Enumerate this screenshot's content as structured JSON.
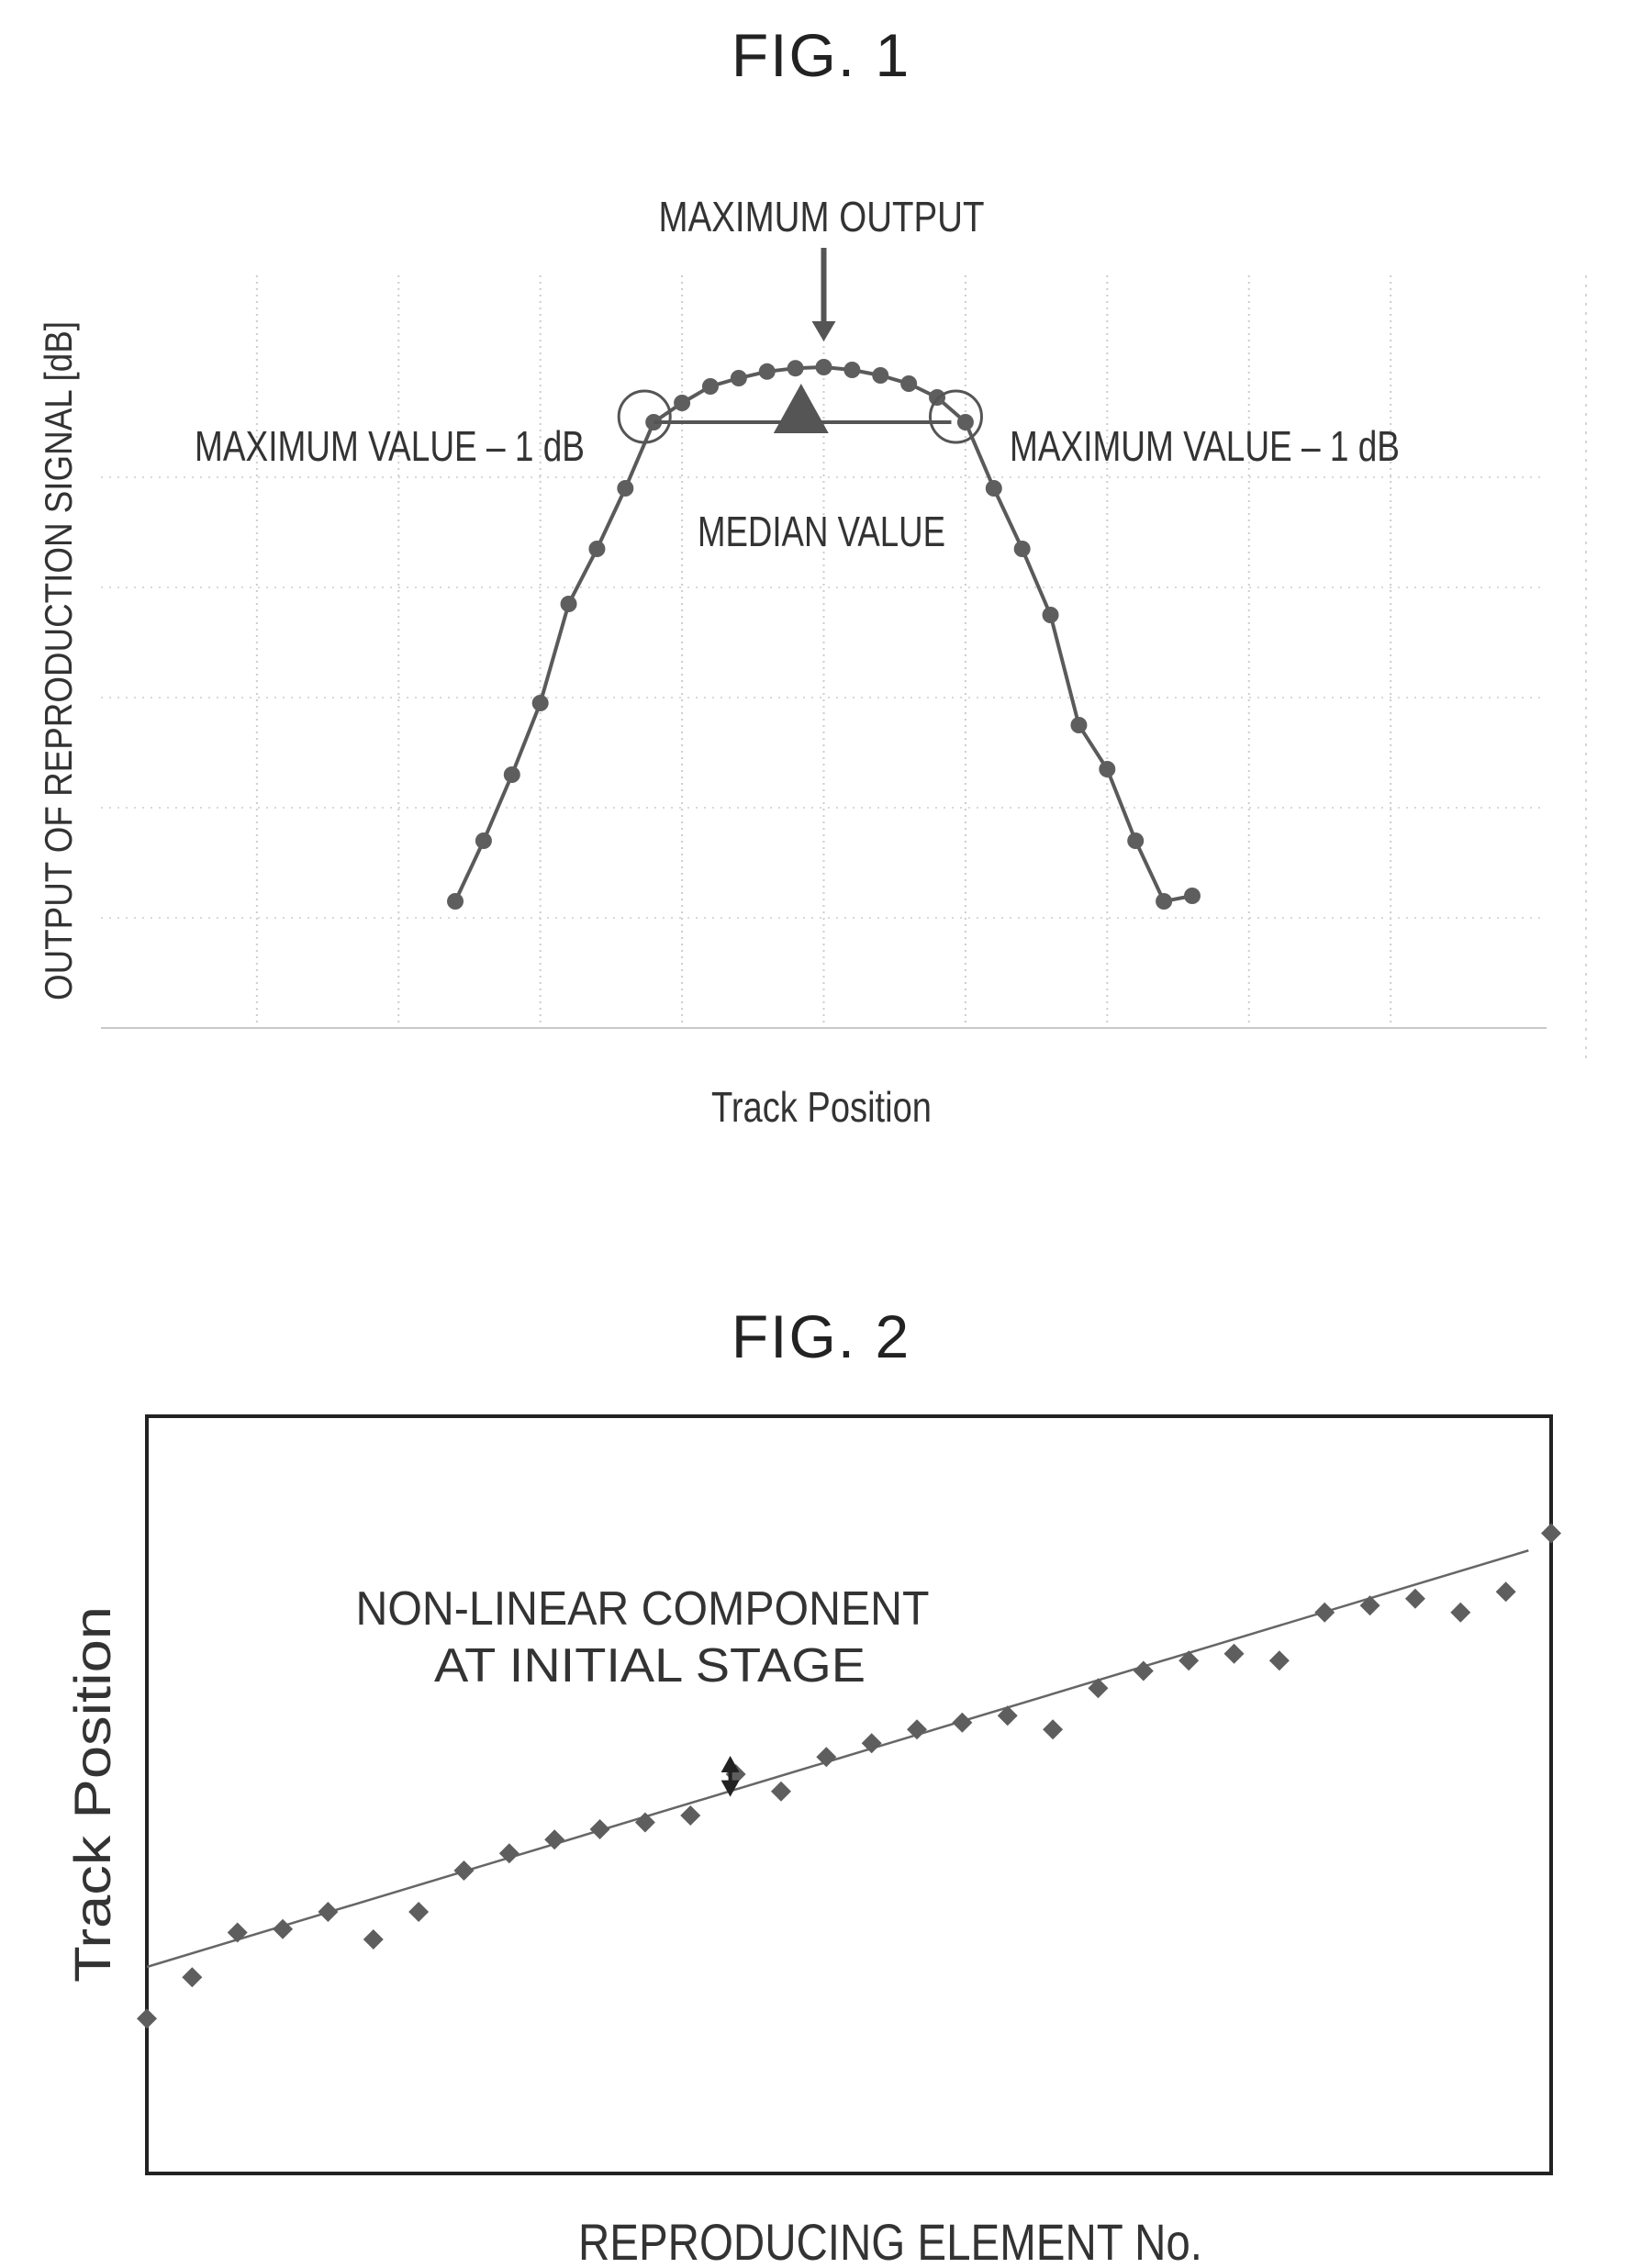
{
  "figure1": {
    "title": "FIG. 1",
    "annotations": {
      "maximum_output": "MAXIMUM OUTPUT",
      "max_minus_left": "MAXIMUM VALUE – 1 dB",
      "max_minus_right": "MAXIMUM VALUE – 1 dB",
      "median": "MEDIAN VALUE"
    }
  },
  "figure2": {
    "title": "FIG. 2",
    "annotations": {
      "nonlinear_line1": "NON-LINEAR COMPONENT",
      "nonlinear_line2": "AT INITIAL STAGE"
    }
  },
  "chart_data": [
    {
      "type": "line",
      "title": "FIG. 1",
      "xlabel": "Track Position",
      "ylabel": "OUTPUT OF REPRODUCTION SIGNAL [dB]",
      "xlim": [
        -25.5,
        25.5
      ],
      "ylim": [
        -12,
        1
      ],
      "grid": true,
      "x": [
        -13,
        -12,
        -11,
        -10,
        -9,
        -8,
        -7,
        -6,
        -5,
        -4,
        -3,
        -2,
        -1,
        0,
        1,
        2,
        3,
        4,
        5,
        6,
        7,
        8,
        9,
        10,
        11,
        12,
        13
      ],
      "y": [
        -9.7,
        -8.6,
        -7.4,
        -6.1,
        -4.3,
        -3.3,
        -2.2,
        -1.0,
        -0.65,
        -0.35,
        -0.2,
        -0.08,
        -0.02,
        0.0,
        -0.05,
        -0.15,
        -0.3,
        -0.55,
        -1.0,
        -2.2,
        -3.3,
        -4.5,
        -6.5,
        -7.3,
        -8.6,
        -9.7,
        -9.6
      ],
      "color": "#5a5a5a",
      "annotations": {
        "maximum_x": 0,
        "threshold_points_x": [
          -6,
          4.5
        ],
        "threshold_y": -1.0,
        "median_x": -0.8
      }
    },
    {
      "type": "scatter",
      "title": "FIG. 2",
      "xlabel": "REPRODUCING ELEMENT No.",
      "ylabel": "Track Position",
      "xlim": [
        0,
        31
      ],
      "ylim": [
        0,
        22
      ],
      "grid": false,
      "x": [
        0,
        1,
        2,
        3,
        4,
        5,
        6,
        7,
        8,
        9,
        10,
        11,
        12,
        13,
        14,
        15,
        16,
        17,
        18,
        19,
        20,
        21,
        22,
        23,
        24,
        25,
        26,
        27,
        28,
        29,
        30,
        31
      ],
      "y": [
        4.5,
        5.7,
        7.0,
        7.1,
        7.6,
        6.8,
        7.6,
        8.8,
        9.3,
        9.7,
        10.0,
        10.2,
        10.4,
        11.6,
        11.1,
        12.1,
        12.5,
        12.9,
        13.1,
        13.3,
        12.9,
        14.1,
        14.6,
        14.9,
        15.1,
        14.9,
        16.3,
        16.5,
        16.7,
        16.3,
        16.9,
        18.6
      ],
      "trendline": {
        "x": [
          0,
          30.5
        ],
        "y": [
          6.0,
          18.1
        ]
      },
      "color": "#5a5a5a"
    }
  ]
}
